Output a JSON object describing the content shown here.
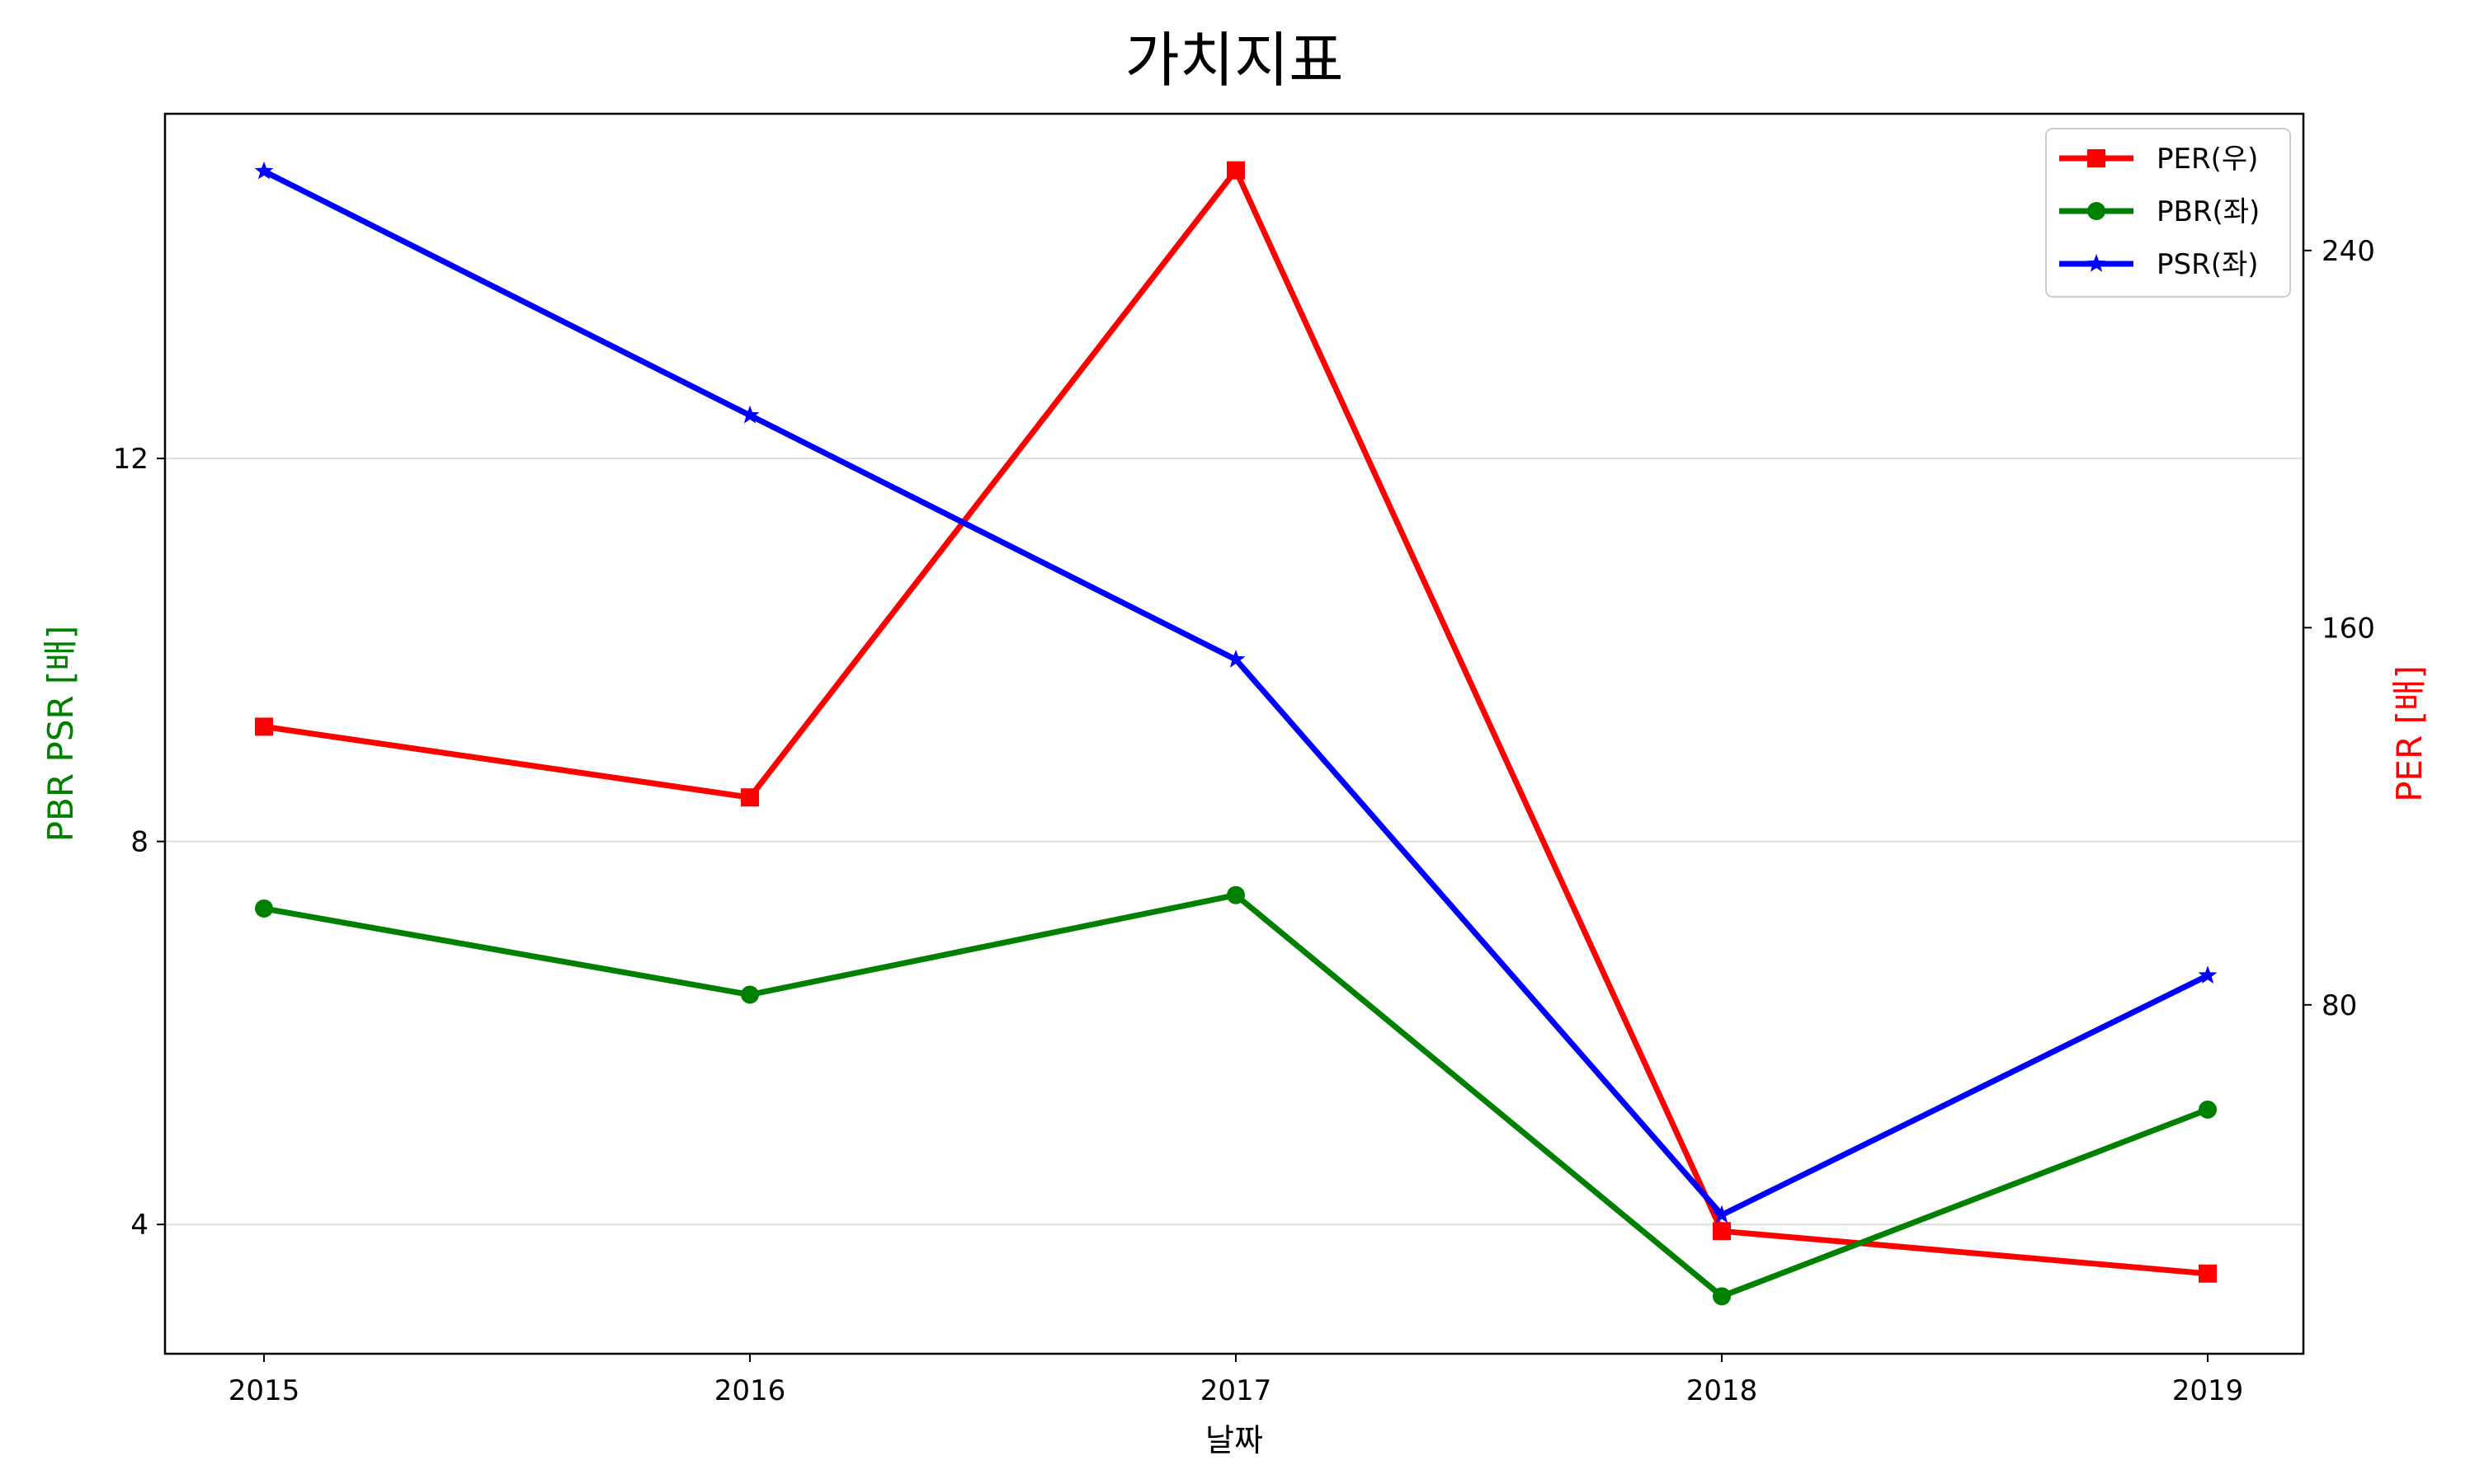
{
  "chart_data": {
    "type": "line",
    "title": "가치지표",
    "xlabel": "날짜",
    "ylabel_left": "PBR PSR [배]",
    "ylabel_right": "PER [배]",
    "ylabel_left_color": "#008000",
    "ylabel_right_color": "#ff0000",
    "categories": [
      "2015",
      "2016",
      "2017",
      "2018",
      "2019"
    ],
    "y_left": {
      "ticks": [
        4,
        8,
        12
      ],
      "ylim": [
        2.65,
        15.6
      ]
    },
    "y_right": {
      "ticks": [
        80,
        160,
        240
      ],
      "ylim": [
        6,
        269
      ]
    },
    "grid": "horizontal (left axis)",
    "legend_position": "top-right",
    "series": [
      {
        "name": "PER(우)",
        "axis": "right",
        "color": "#ff0000",
        "marker": "square",
        "values": [
          139,
          124,
          257,
          32,
          23
        ]
      },
      {
        "name": "PBR(좌)",
        "axis": "left",
        "color": "#008000",
        "marker": "circle",
        "values": [
          7.3,
          6.4,
          7.44,
          3.25,
          5.2
        ]
      },
      {
        "name": "PSR(좌)",
        "axis": "left",
        "color": "#0000ff",
        "marker": "star",
        "values": [
          15.0,
          12.45,
          9.9,
          4.1,
          6.6
        ]
      }
    ]
  }
}
